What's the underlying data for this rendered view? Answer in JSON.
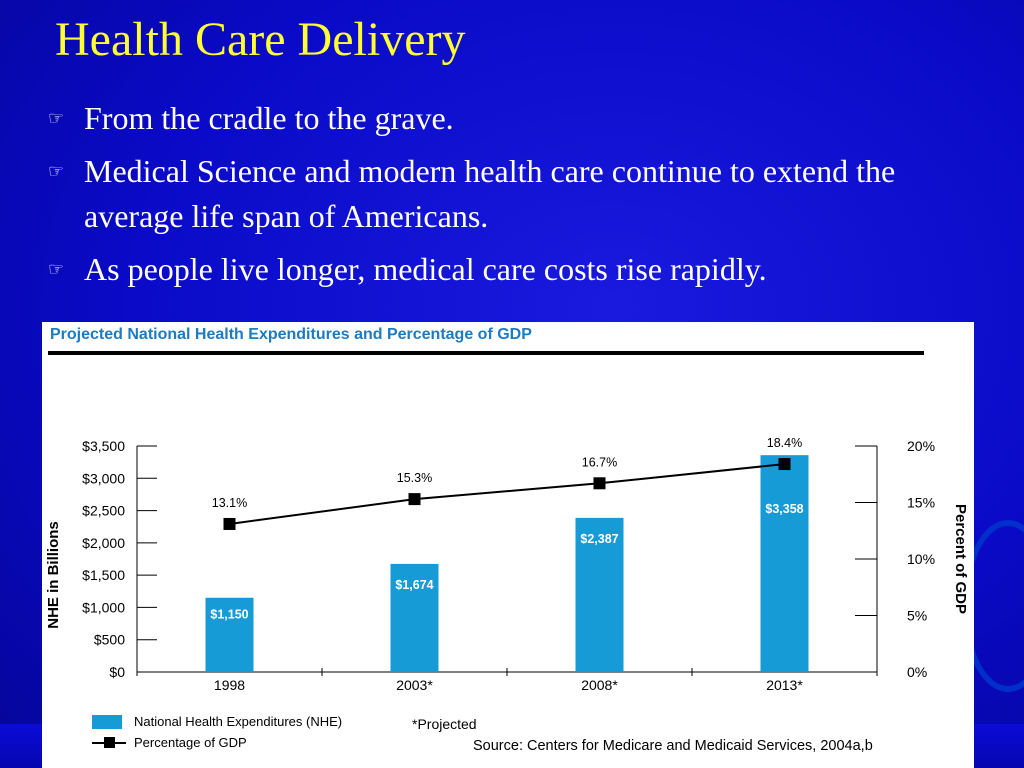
{
  "slide": {
    "title": "Health Care Delivery",
    "bullets": [
      {
        "icon": "pointing-hand-icon",
        "text": "From the cradle to the grave."
      },
      {
        "icon": "pointing-hand-icon",
        "text": "Medical Science and modern health care continue to extend the average life span of Americans."
      },
      {
        "icon": "pointing-hand-icon",
        "text": "As people live longer, medical care costs rise rapidly."
      }
    ],
    "colors": {
      "background": "#0a0ac8",
      "title": "#ffff33",
      "text": "#ffffff"
    }
  },
  "chart_data": {
    "type": "bar",
    "title": "Projected National Health Expenditures and Percentage of GDP",
    "categories": [
      "1998",
      "2003*",
      "2008*",
      "2013*"
    ],
    "ylabel": "NHE in Billions",
    "y2label": "Percent of GDP",
    "ylim": [
      0,
      3500
    ],
    "y2lim": [
      0,
      20
    ],
    "yticks": [
      "$0",
      "$500",
      "$1,000",
      "$1,500",
      "$2,000",
      "$2,500",
      "$3,000",
      "$3,500"
    ],
    "y2ticks": [
      "0%",
      "5%",
      "10%",
      "15%",
      "20%"
    ],
    "series": [
      {
        "name": "National Health Expenditures (NHE)",
        "type": "bar",
        "axis": "left",
        "values": [
          1150,
          1674,
          2387,
          3358
        ],
        "labels": [
          "$1,150",
          "$1,674",
          "$2,387",
          "$3,358"
        ],
        "color": "#169bd6"
      },
      {
        "name": "Percentage of GDP",
        "type": "line",
        "axis": "right",
        "values": [
          13.1,
          15.3,
          16.7,
          18.4
        ],
        "labels": [
          "13.1%",
          "15.3%",
          "16.7%",
          "18.4%"
        ],
        "color": "#000000"
      }
    ],
    "legend": "bottom-left",
    "note": "*Projected",
    "source": "Source: Centers for Medicare and Medicaid Services, 2004a,b",
    "grid": false
  }
}
